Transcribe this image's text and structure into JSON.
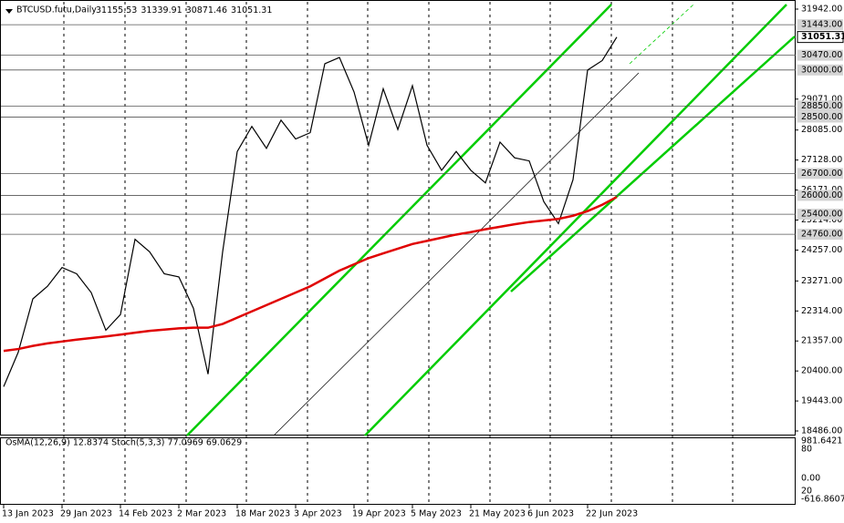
{
  "chart_data": {
    "type": "line",
    "title": "BTCUSD.futu,Daily",
    "ohlc": [
      31155.53,
      31339.91,
      30871.46,
      31051.31
    ],
    "categories": [
      "13 Jan 2023",
      null,
      null,
      null,
      "29 Jan 2023",
      null,
      null,
      null,
      "14 Feb 2023",
      null,
      null,
      null,
      "2 Mar 2023",
      null,
      null,
      null,
      "18 Mar 2023",
      null,
      null,
      null,
      "3 Apr 2023",
      null,
      null,
      null,
      "19 Apr 2023",
      null,
      null,
      null,
      "5 May 2023",
      null,
      null,
      null,
      "21 May 2023",
      null,
      null,
      null,
      "6 Jun 2023",
      null,
      null,
      null,
      "22 Jun 2023",
      null,
      null
    ],
    "series": [
      {
        "color": "#000000",
        "values": [
          19900,
          21000,
          22700,
          23100,
          23700,
          23500,
          22900,
          21700,
          22200,
          24600,
          24200,
          23500,
          23400,
          22400,
          20300,
          24200,
          27400,
          28200,
          27500,
          28400,
          27800,
          28000,
          30200,
          30400,
          29300,
          27600,
          29400,
          28100,
          29500,
          27600,
          26800,
          27400,
          26800,
          26400,
          27700,
          27200,
          27100,
          25800,
          25100,
          26500,
          30000,
          30300,
          31051.31
        ]
      },
      {
        "color": "#e00000",
        "values": [
          21040,
          21100,
          21200,
          21280,
          21340,
          21400,
          21450,
          21500,
          21560,
          21620,
          21680,
          21720,
          21760,
          21780,
          21780,
          21900,
          22100,
          22300,
          22500,
          22700,
          22900,
          23100,
          23350,
          23600,
          23800,
          24000,
          24150,
          24300,
          24450,
          24550,
          24650,
          24750,
          24830,
          24920,
          25000,
          25080,
          25150,
          25200,
          25250,
          25350,
          25500,
          25700,
          25950
        ]
      }
    ],
    "ylim": [
      18341,
      32174
    ],
    "yticks": [
      {
        "value": 31942,
        "label": "31942.00"
      },
      {
        "value": 29071,
        "label": "29071.00"
      },
      {
        "value": 28085,
        "label": "28085.00"
      },
      {
        "value": 27128,
        "label": "27128.00"
      },
      {
        "value": 26171,
        "label": "26171.00"
      },
      {
        "value": 25214,
        "label": "25214.00"
      },
      {
        "value": 24257,
        "label": "24257.00"
      },
      {
        "value": 23271,
        "label": "23271.00"
      },
      {
        "value": 22314,
        "label": "22314.00"
      },
      {
        "value": 21357,
        "label": "21357.00"
      },
      {
        "value": 20400,
        "label": "20400.00"
      },
      {
        "value": 19443,
        "label": "19443.00"
      },
      {
        "value": 18486,
        "label": "18486.00"
      }
    ],
    "levels": [
      {
        "value": 31443,
        "label": "31443.00"
      },
      {
        "value": 30470,
        "label": "30470.00"
      },
      {
        "value": 30000,
        "label": "30000.00"
      },
      {
        "value": 28850,
        "label": "28850.00"
      },
      {
        "value": 28500,
        "label": "28500.00"
      },
      {
        "value": 26700,
        "label": "26700.00"
      },
      {
        "value": 26000,
        "label": "26000.00"
      },
      {
        "value": 25400,
        "label": "25400.00"
      },
      {
        "value": 24760,
        "label": "24760.00"
      }
    ],
    "current": 31051.31,
    "indicator": "OsMA(12,26,9) 12.8374  Stoch(5,3,3) 77.0969 69.0629",
    "indicator_axis": [
      "981.6421",
      "80",
      "0.00",
      "20",
      "-616.8607"
    ]
  }
}
